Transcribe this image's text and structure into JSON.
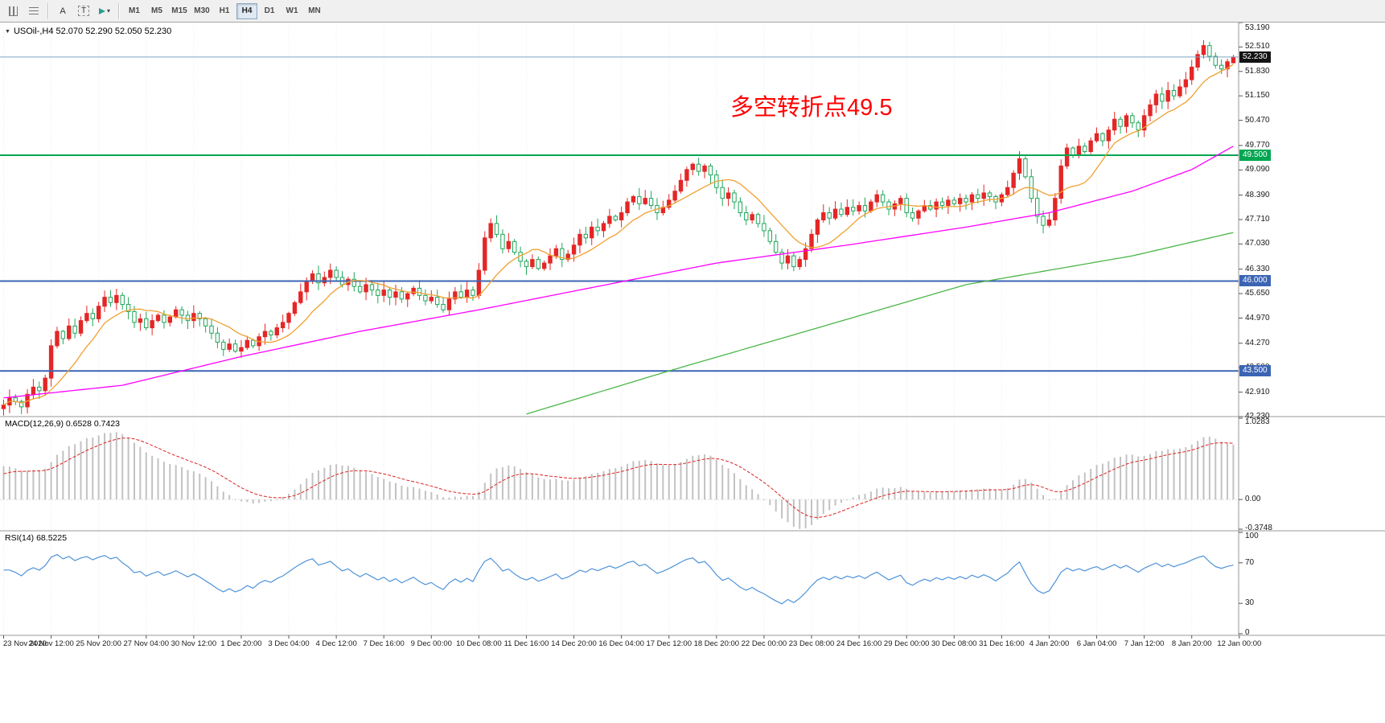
{
  "toolbar": {
    "cursor_label": "A",
    "text_label": "T",
    "timeframes": [
      "M1",
      "M5",
      "M15",
      "M30",
      "H1",
      "H4",
      "D1",
      "W1",
      "MN"
    ],
    "active_timeframe": "H4"
  },
  "chart_header": {
    "text": "USOil-,H4 52.070 52.290 52.050 52.230"
  },
  "annotation": {
    "text": "多空转折点49.5",
    "color": "#ff0000"
  },
  "price_axis": {
    "labels": [
      "53.190",
      "52.510",
      "51.830",
      "51.150",
      "50.470",
      "49.770",
      "49.090",
      "48.390",
      "47.710",
      "47.030",
      "46.330",
      "45.650",
      "44.970",
      "44.270",
      "43.590",
      "42.910",
      "42.230"
    ],
    "current_price": "52.230"
  },
  "hlines": [
    {
      "value": 52.23,
      "label": "52.230",
      "color": "#7fa3c4",
      "tag_color": "#141414",
      "width": 1
    },
    {
      "value": 49.5,
      "label": "49.500",
      "color": "#00a651",
      "tag_color": "#00a651",
      "width": 2
    },
    {
      "value": 46.0,
      "label": "46.000",
      "color": "#3c64b4",
      "tag_color": "#3c64b4",
      "width": 2
    },
    {
      "value": 43.5,
      "label": "43.500",
      "color": "#3c64b4",
      "tag_color": "#3c64b4",
      "width": 2
    }
  ],
  "macd_panel": {
    "label": "MACD(12,26,9) 0.6528 0.7423",
    "axis_labels": [
      "1.0283",
      "0.00",
      "-0.3748"
    ],
    "range": [
      -0.3748,
      1.0283
    ]
  },
  "rsi_panel": {
    "label": "RSI(14) 68.5225",
    "axis_labels": [
      "100",
      "70",
      "30",
      "0"
    ],
    "range": [
      0,
      100
    ]
  },
  "time_axis": {
    "labels": [
      "23 Nov 2020",
      "24 Nov 12:00",
      "25 Nov 20:00",
      "27 Nov 04:00",
      "30 Nov 12:00",
      "1 Dec 20:00",
      "3 Dec 04:00",
      "4 Dec 12:00",
      "7 Dec 16:00",
      "9 Dec 00:00",
      "10 Dec 08:00",
      "11 Dec 16:00",
      "14 Dec 20:00",
      "16 Dec 04:00",
      "17 Dec 12:00",
      "18 Dec 20:00",
      "22 Dec 00:00",
      "23 Dec 08:00",
      "24 Dec 16:00",
      "29 Dec 00:00",
      "30 Dec 08:00",
      "31 Dec 16:00",
      "4 Jan 20:00",
      "6 Jan 04:00",
      "7 Jan 12:00",
      "8 Jan 20:00",
      "12 Jan 00:00"
    ]
  },
  "chart_data": {
    "type": "candlestick",
    "symbol": "USOil",
    "timeframe": "H4",
    "title": "USOil-,H4",
    "last_ohlc": {
      "open": 52.07,
      "high": 52.29,
      "low": 52.05,
      "close": 52.23
    },
    "price_range": [
      42.23,
      53.19
    ],
    "bars_per_tick": 8,
    "closes": [
      42.55,
      42.75,
      42.65,
      42.5,
      42.85,
      43.05,
      42.95,
      43.3,
      44.2,
      44.6,
      44.4,
      44.75,
      44.55,
      44.9,
      45.1,
      44.95,
      45.3,
      45.55,
      45.4,
      45.6,
      45.35,
      45.15,
      44.85,
      44.95,
      44.7,
      44.9,
      45.05,
      44.85,
      45.0,
      45.2,
      45.05,
      44.9,
      45.1,
      44.95,
      44.75,
      44.55,
      44.3,
      44.1,
      44.25,
      44.05,
      44.15,
      44.35,
      44.2,
      44.45,
      44.6,
      44.5,
      44.7,
      44.85,
      45.1,
      45.4,
      45.7,
      46.0,
      46.2,
      45.95,
      46.1,
      46.3,
      46.1,
      45.9,
      46.05,
      45.85,
      45.7,
      45.9,
      45.75,
      45.6,
      45.75,
      45.55,
      45.7,
      45.5,
      45.65,
      45.8,
      45.6,
      45.45,
      45.55,
      45.35,
      45.2,
      45.5,
      45.7,
      45.55,
      45.75,
      45.6,
      46.3,
      47.2,
      47.6,
      47.3,
      46.9,
      47.1,
      46.8,
      46.55,
      46.4,
      46.6,
      46.35,
      46.5,
      46.7,
      46.9,
      46.6,
      46.75,
      47.0,
      47.3,
      47.2,
      47.5,
      47.4,
      47.6,
      47.8,
      47.7,
      47.9,
      48.2,
      48.35,
      48.15,
      48.3,
      48.1,
      47.9,
      48.05,
      48.25,
      48.5,
      48.8,
      49.1,
      49.25,
      49.05,
      49.2,
      48.95,
      48.6,
      48.3,
      48.45,
      48.2,
      47.9,
      47.7,
      47.85,
      47.6,
      47.4,
      47.1,
      46.8,
      46.5,
      46.7,
      46.4,
      46.6,
      46.9,
      47.3,
      47.7,
      47.9,
      47.75,
      48.0,
      47.85,
      48.05,
      47.95,
      48.1,
      47.95,
      48.2,
      48.4,
      48.2,
      48.0,
      48.15,
      48.3,
      47.9,
      47.75,
      47.95,
      48.1,
      48.0,
      48.2,
      48.1,
      48.25,
      48.15,
      48.3,
      48.2,
      48.4,
      48.3,
      48.45,
      48.35,
      48.2,
      48.4,
      48.6,
      49.0,
      49.4,
      48.9,
      48.3,
      47.8,
      47.55,
      47.7,
      48.3,
      49.2,
      49.7,
      49.5,
      49.75,
      49.6,
      49.9,
      50.1,
      49.9,
      50.2,
      50.5,
      50.3,
      50.6,
      50.4,
      50.2,
      50.6,
      50.9,
      51.2,
      51.0,
      51.3,
      51.15,
      51.4,
      51.6,
      51.95,
      52.3,
      52.55,
      52.25,
      52.0,
      51.9,
      52.1,
      52.23
    ],
    "colors": {
      "up": "#e42626",
      "down": "#1fa75a"
    },
    "indicators": {
      "ma_fast": {
        "period": 10,
        "color": "#f0a030"
      },
      "ma_mid": {
        "color": "#ff00ff",
        "anchors": [
          [
            0,
            42.75
          ],
          [
            20,
            43.1
          ],
          [
            40,
            43.9
          ],
          [
            60,
            44.6
          ],
          [
            80,
            45.2
          ],
          [
            100,
            45.85
          ],
          [
            120,
            46.5
          ],
          [
            142,
            47.0
          ],
          [
            162,
            47.5
          ],
          [
            176,
            47.9
          ],
          [
            190,
            48.5
          ],
          [
            200,
            49.1
          ],
          [
            207,
            49.75
          ]
        ]
      },
      "ma_slow": {
        "color": "#4cb648",
        "anchors": [
          [
            88,
            42.3
          ],
          [
            112,
            43.5
          ],
          [
            135,
            44.6
          ],
          [
            162,
            45.9
          ],
          [
            190,
            46.7
          ],
          [
            207,
            47.35
          ]
        ]
      },
      "macd": {
        "fast": 12,
        "slow": 26,
        "signal": 9,
        "hist_color": "#c2c2c2",
        "signal_color": "#dd2222",
        "macd_value": 0.6528,
        "signal_value": 0.7423
      },
      "rsi": {
        "period": 14,
        "color": "#4f93d8",
        "last_value": 68.5225
      }
    }
  }
}
